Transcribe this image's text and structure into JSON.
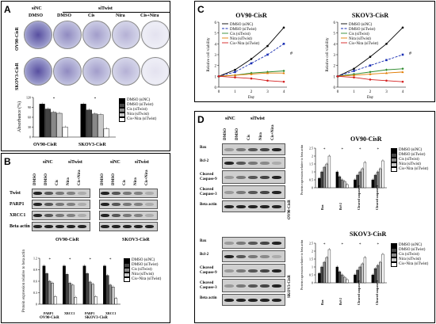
{
  "panel_labels": {
    "a": "A",
    "b": "B",
    "c": "C",
    "d": "D"
  },
  "colony": {
    "group_sinc": "siNC",
    "group_sitwist": "siTwist",
    "lanes": [
      "DMSO",
      "DMSO",
      "Cis",
      "Nira",
      "Cis+Nira"
    ],
    "row_labels": [
      "OV90-CisR",
      "SKOV3-CisR"
    ]
  },
  "legend_five": [
    "DMSO (siNC)",
    "DMSO (siTwist)",
    "Cis (siTwist)",
    "Nira (siTwist)",
    "Cis+Nira (siTwist)"
  ],
  "legend_colors": [
    "#000000",
    "#444444",
    "#888888",
    "#c8c8c8",
    "#ffffff"
  ],
  "bar_a": {
    "ylabel": "Absorbance (%)",
    "groups": [
      "OV90-CisR",
      "SKOV3-CisR"
    ]
  },
  "blot_b": {
    "group_sinc": "siNC",
    "group_sitwist": "siTwist",
    "lanes": [
      "DMSO",
      "DMSO",
      "Cis",
      "Nira",
      "Cis+Nira"
    ],
    "proteins": [
      "Twist",
      "PARP1",
      "XRCC1",
      "Beta actin"
    ],
    "cell_lines": [
      "OV90-CisR",
      "SKOV3-CisR"
    ]
  },
  "bar_b": {
    "ylabel": "Protein expression relative to beta actin",
    "xticks": [
      "PARP1",
      "XRCC1",
      "PARP1",
      "XRCC1"
    ],
    "groups": [
      "OV90-CisR",
      "SKOV3-CisR"
    ]
  },
  "line_c": {
    "titles": [
      "OV90-CisR",
      "SKOV3-CisR"
    ],
    "ylabel": "Relative cell viability",
    "xlabel": "Day",
    "legend": [
      "DMSO (siNC)",
      "DMSO (siTwist)",
      "Cis (siTwist)",
      "Nira (siTwist)",
      "Cis+Nira (siTwist)"
    ],
    "colors": [
      "#000000",
      "#1a2fb3",
      "#2e8b2e",
      "#e07b00",
      "#d42020"
    ],
    "xticks": [
      "0",
      "1",
      "2",
      "3",
      "4"
    ],
    "yticks": [
      "0",
      "1",
      "2",
      "3",
      "4",
      "5",
      "6"
    ]
  },
  "blot_d": {
    "group_sinc": "siNC",
    "group_sitwist": "siTwist",
    "lanes": [
      "DMSO",
      "DMSO",
      "Cis",
      "Nira",
      "Cis+Nira"
    ],
    "proteins_top": [
      "Bax",
      "Bcl-2",
      "Cleaved Caspase-9",
      "Cleaved Caspase-3",
      "Beta actin"
    ],
    "proteins_bottom": [
      "Bax",
      "Bcl-2",
      "Cleaved Caspase-9",
      "Cleaved Caspase-3",
      "Beta actin"
    ],
    "side_top": "OV90-CisR",
    "side_bottom": "SKOV3-CisR"
  },
  "bar_d": {
    "titles": [
      "OV90-CisR",
      "SKOV3-CisR"
    ],
    "ylabel": "Protein expression relative to beta actin",
    "xticks": [
      "Bax",
      "Bcl-2",
      "Cleaved caspase-9",
      "Cleaved caspase-3"
    ]
  },
  "chart_data": [
    {
      "type": "bar",
      "title": "",
      "ylabel": "Absorbance (%)",
      "categories": [
        "OV90-CisR",
        "SKOV3-CisR"
      ],
      "ylim": [
        0,
        120
      ],
      "series": [
        {
          "name": "DMSO (siNC)",
          "values": [
            100,
            100
          ]
        },
        {
          "name": "DMSO (siTwist)",
          "values": [
            85,
            82
          ]
        },
        {
          "name": "Cis (siTwist)",
          "values": [
            75,
            70
          ]
        },
        {
          "name": "Nira (siTwist)",
          "values": [
            72,
            68
          ]
        },
        {
          "name": "Cis+Nira (siTwist)",
          "values": [
            30,
            25
          ]
        }
      ]
    },
    {
      "type": "bar",
      "title": "",
      "ylabel": "Protein expression relative to beta actin",
      "categories": [
        "PARP1",
        "XRCC1",
        "PARP1",
        "XRCC1"
      ],
      "ylim": [
        0,
        1.2
      ],
      "series": [
        {
          "name": "DMSO (siNC)",
          "values": [
            1.0,
            1.0,
            1.0,
            1.0
          ]
        },
        {
          "name": "DMSO (siTwist)",
          "values": [
            0.8,
            0.78,
            0.8,
            0.75
          ]
        },
        {
          "name": "Cis (siTwist)",
          "values": [
            0.6,
            0.55,
            0.58,
            0.5
          ]
        },
        {
          "name": "Nira (siTwist)",
          "values": [
            0.55,
            0.5,
            0.52,
            0.45
          ]
        },
        {
          "name": "Cis+Nira (siTwist)",
          "values": [
            0.2,
            0.18,
            0.2,
            0.15
          ]
        }
      ]
    },
    {
      "type": "line",
      "title": "OV90-CisR",
      "xlabel": "Day",
      "ylabel": "Relative cell viability",
      "x": [
        0,
        1,
        2,
        3,
        4
      ],
      "ylim": [
        0,
        6
      ],
      "series": [
        {
          "name": "DMSO (siNC)",
          "values": [
            1,
            1.6,
            2.6,
            3.8,
            5.5
          ]
        },
        {
          "name": "DMSO (siTwist)",
          "values": [
            1,
            1.4,
            2.2,
            3.0,
            4.0
          ]
        },
        {
          "name": "Cis (siTwist)",
          "values": [
            1,
            1.1,
            1.3,
            1.4,
            1.5
          ]
        },
        {
          "name": "Nira (siTwist)",
          "values": [
            1,
            1.1,
            1.2,
            1.3,
            1.3
          ]
        },
        {
          "name": "Cis+Nira (siTwist)",
          "values": [
            1,
            0.9,
            0.8,
            0.6,
            0.5
          ]
        }
      ]
    },
    {
      "type": "line",
      "title": "SKOV3-CisR",
      "xlabel": "Day",
      "ylabel": "Relative cell viability",
      "x": [
        0,
        1,
        2,
        3,
        4
      ],
      "ylim": [
        0,
        6
      ],
      "series": [
        {
          "name": "DMSO (siNC)",
          "values": [
            1,
            1.7,
            2.8,
            4.0,
            5.5
          ]
        },
        {
          "name": "DMSO (siTwist)",
          "values": [
            1,
            1.5,
            2.0,
            2.5,
            3.0
          ]
        },
        {
          "name": "Cis (siTwist)",
          "values": [
            1,
            1.2,
            1.4,
            1.6,
            1.7
          ]
        },
        {
          "name": "Nira (siTwist)",
          "values": [
            1,
            1.1,
            1.2,
            1.3,
            1.4
          ]
        },
        {
          "name": "Cis+Nira (siTwist)",
          "values": [
            1,
            0.9,
            0.7,
            0.6,
            0.5
          ]
        }
      ]
    },
    {
      "type": "bar",
      "title": "OV90-CisR",
      "ylabel": "Protein expression relative to beta actin",
      "categories": [
        "Bax",
        "Bcl-2",
        "Cleaved caspase-9",
        "Cleaved caspase-3"
      ],
      "ylim": [
        0,
        2.5
      ],
      "series": [
        {
          "name": "DMSO (siNC)",
          "values": [
            0.6,
            1.0,
            0.5,
            0.5
          ]
        },
        {
          "name": "DMSO (siTwist)",
          "values": [
            1.0,
            0.7,
            0.8,
            0.8
          ]
        },
        {
          "name": "Cis (siTwist)",
          "values": [
            1.3,
            0.5,
            1.0,
            1.0
          ]
        },
        {
          "name": "Nira (siTwist)",
          "values": [
            1.5,
            0.4,
            1.2,
            1.2
          ]
        },
        {
          "name": "Cis+Nira (siTwist)",
          "values": [
            2.0,
            0.2,
            1.6,
            1.7
          ]
        }
      ]
    },
    {
      "type": "bar",
      "title": "SKOV3-CisR",
      "ylabel": "Protein expression relative to beta actin",
      "categories": [
        "Bax",
        "Bcl-2",
        "Cleaved caspase-9",
        "Cleaved caspase-3"
      ],
      "ylim": [
        0,
        2.5
      ],
      "series": [
        {
          "name": "DMSO (siNC)",
          "values": [
            0.6,
            1.0,
            0.5,
            0.5
          ]
        },
        {
          "name": "DMSO (siTwist)",
          "values": [
            1.0,
            0.7,
            0.8,
            0.9
          ]
        },
        {
          "name": "Cis (siTwist)",
          "values": [
            1.3,
            0.5,
            1.0,
            1.1
          ]
        },
        {
          "name": "Nira (siTwist)",
          "values": [
            1.6,
            0.35,
            1.2,
            1.3
          ]
        },
        {
          "name": "Cis+Nira (siTwist)",
          "values": [
            2.1,
            0.2,
            1.6,
            1.8
          ]
        }
      ]
    }
  ]
}
